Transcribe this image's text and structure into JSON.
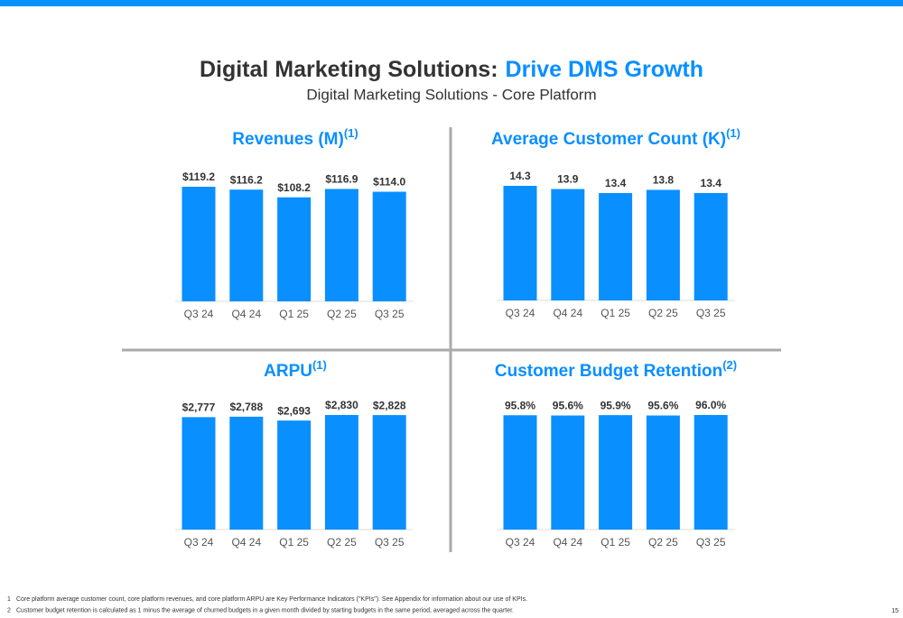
{
  "header": {
    "title": "Digital Marketing Solutions:",
    "title_highlight": "Drive DMS Growth",
    "subtitle": "Digital Marketing Solutions - Core Platform"
  },
  "chart_data": [
    {
      "type": "bar",
      "title": "Revenues (M)",
      "title_note": "(1)",
      "categories": [
        "Q3 24",
        "Q4 24",
        "Q1 25",
        "Q2 25",
        "Q3 25"
      ],
      "values": [
        119.2,
        116.2,
        108.2,
        116.9,
        114.0
      ],
      "value_labels": [
        "$119.2",
        "$116.2",
        "$108.2",
        "$116.9",
        "$114.0"
      ],
      "color": "#0a8fff"
    },
    {
      "type": "bar",
      "title": "Average Customer Count (K)",
      "title_note": "(1)",
      "categories": [
        "Q3 24",
        "Q4 24",
        "Q1 25",
        "Q2 25",
        "Q3 25"
      ],
      "values": [
        14.3,
        13.9,
        13.4,
        13.8,
        13.4
      ],
      "color": "#0a8fff"
    },
    {
      "type": "bar",
      "title": "ARPU",
      "title_note": "(1)",
      "categories": [
        "Q3 24",
        "Q4 24",
        "Q1 25",
        "Q2 25",
        "Q3 25"
      ],
      "values": [
        2777,
        2788,
        2693,
        2830,
        2828
      ],
      "value_labels": [
        "$2,777",
        "$2,788",
        "$2,693",
        "$2,830",
        "$2,828"
      ],
      "color": "#0a8fff"
    },
    {
      "type": "bar",
      "title": "Customer Budget Retention",
      "title_note": "(2)",
      "categories": [
        "Q3 24",
        "Q4 24",
        "Q1 25",
        "Q2 25",
        "Q3 25"
      ],
      "values": [
        95.8,
        95.6,
        95.9,
        95.6,
        96.0
      ],
      "value_labels": [
        "95.8%",
        "95.6%",
        "95.9%",
        "95.6%",
        "96.0%"
      ],
      "color": "#0a8fff"
    }
  ],
  "footnotes": [
    {
      "number": "1",
      "text": "Core platform average customer count, core platform revenues, and core platform ARPU are Key Performance Indicators (\"KPIs\"). See Appendix for information about our use of KPIs."
    },
    {
      "number": "2",
      "text": "Customer budget retention is calculated as 1 minus the average of churned budgets in a given month divided by starting budgets in the same period, averaged across the quarter."
    }
  ],
  "page_number": "15"
}
